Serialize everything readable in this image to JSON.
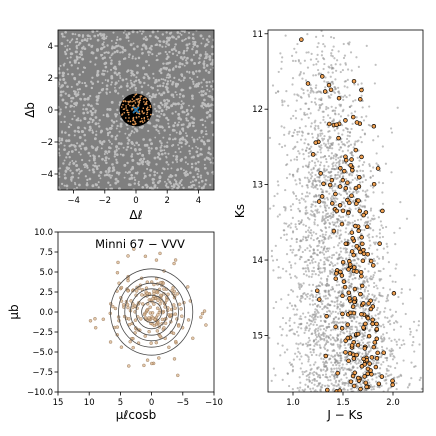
{
  "chart_data": [
    {
      "type": "scatter",
      "panel": "top-left",
      "xlabel": "Δℓ",
      "ylabel": "Δb",
      "xlim": [
        -5,
        5
      ],
      "ylim": [
        -5,
        5
      ],
      "xticks": [
        -4,
        -2,
        0,
        2,
        4
      ],
      "yticks": [
        -4,
        -2,
        0,
        2,
        4
      ],
      "xtick_labels": [
        "−4",
        "−2",
        "0",
        "2",
        "4"
      ],
      "ytick_labels": [
        "−4",
        "−2",
        "0",
        "2",
        "4"
      ],
      "series": [
        {
          "role": "field",
          "color": "#808080"
        },
        {
          "role": "cluster-area",
          "color": "#000000",
          "radius": 1.05
        },
        {
          "role": "members",
          "color": "#e69a55"
        },
        {
          "role": "center",
          "marker": "x",
          "color": "#1f77b4",
          "x": 0,
          "y": 0
        }
      ]
    },
    {
      "type": "scatter",
      "panel": "bottom-left",
      "annotation": "Minni 67 − VVV",
      "xlabel": "μℓcosb",
      "ylabel": "μb",
      "xlim": [
        15,
        -10
      ],
      "ylim": [
        -10,
        10
      ],
      "xticks": [
        15,
        10,
        5,
        0,
        -5,
        -10
      ],
      "yticks": [
        -10,
        -7.5,
        -5,
        -2.5,
        0,
        2.5,
        5,
        7.5,
        10
      ],
      "xtick_labels": [
        "15",
        "10",
        "5",
        "0",
        "−5",
        "−10"
      ],
      "ytick_labels": [
        "−10.0",
        "−7.5",
        "−5.0",
        "−2.5",
        "0.0",
        "2.5",
        "5.0",
        "7.5",
        "10.0"
      ],
      "contour_levels": [
        {
          "rx": 1.6,
          "ry": 1.3
        },
        {
          "rx": 2.5,
          "ry": 2.1
        },
        {
          "rx": 3.4,
          "ry": 2.9
        },
        {
          "rx": 4.3,
          "ry": 3.6
        },
        {
          "rx": 5.3,
          "ry": 4.4
        },
        {
          "rx": 6.6,
          "ry": 5.4
        }
      ],
      "center": [
        0,
        0
      ],
      "series": [
        {
          "role": "members",
          "color": "#d8b48e"
        }
      ]
    },
    {
      "type": "scatter",
      "panel": "right",
      "xlabel": "J − Ks",
      "ylabel": "Ks",
      "xlim": [
        0.75,
        2.3
      ],
      "ylim": [
        15.75,
        10.95
      ],
      "xticks": [
        1.0,
        1.5,
        2.0
      ],
      "yticks": [
        11,
        12,
        13,
        14,
        15
      ],
      "xtick_labels": [
        "1.0",
        "1.5",
        "2.0"
      ],
      "ytick_labels": [
        "11",
        "12",
        "13",
        "14",
        "15"
      ],
      "series": [
        {
          "role": "field",
          "color": "#8c8c8c"
        },
        {
          "role": "members",
          "color": "#f0a050",
          "edge": "#000000"
        }
      ]
    }
  ]
}
